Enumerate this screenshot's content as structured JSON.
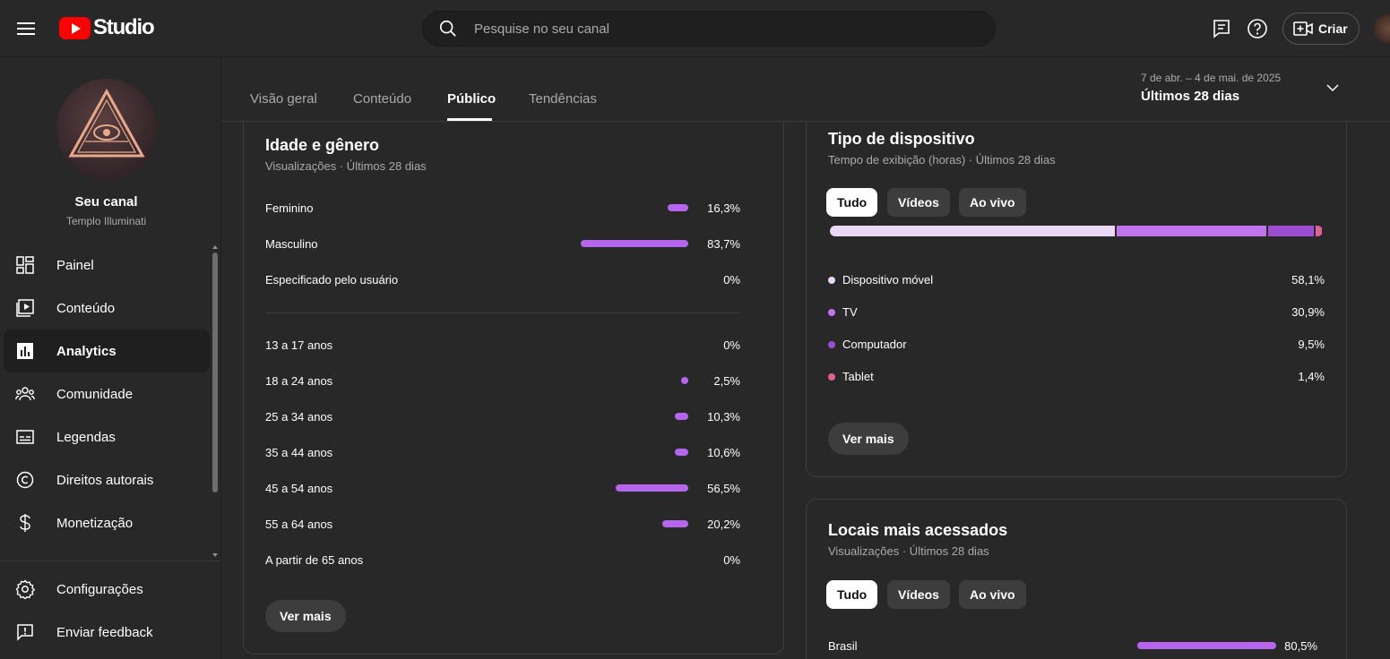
{
  "header": {
    "logo_text": "Studio",
    "search_placeholder": "Pesquise no seu canal",
    "create_label": "Criar"
  },
  "sidebar": {
    "channel_name": "Seu canal",
    "channel_handle": "Templo Illuminati",
    "items": [
      {
        "label": "Painel",
        "icon": "dashboard-icon"
      },
      {
        "label": "Conteúdo",
        "icon": "content-icon"
      },
      {
        "label": "Analytics",
        "icon": "analytics-icon",
        "active": true
      },
      {
        "label": "Comunidade",
        "icon": "community-icon"
      },
      {
        "label": "Legendas",
        "icon": "subtitles-icon"
      },
      {
        "label": "Direitos autorais",
        "icon": "copyright-icon"
      },
      {
        "label": "Monetização",
        "icon": "dollar-icon"
      }
    ],
    "bottom_items": [
      {
        "label": "Configurações",
        "icon": "gear-icon"
      },
      {
        "label": "Enviar feedback",
        "icon": "feedback-icon"
      }
    ]
  },
  "tabs": [
    {
      "label": "Visão geral"
    },
    {
      "label": "Conteúdo"
    },
    {
      "label": "Público",
      "active": true
    },
    {
      "label": "Tendências"
    }
  ],
  "date_range": {
    "range": "7 de abr. – 4 de mai. de 2025",
    "label": "Últimos 28 dias"
  },
  "age_gender": {
    "title": "Idade e gênero",
    "subtitle": "Visualizações · Últimos 28 dias",
    "gender": [
      {
        "label": "Feminino",
        "value": "16,3%",
        "pct": 16.3
      },
      {
        "label": "Masculino",
        "value": "83,7%",
        "pct": 83.7
      },
      {
        "label": "Especificado pelo usuário",
        "value": "0%",
        "pct": 0
      }
    ],
    "age": [
      {
        "label": "13 a 17 anos",
        "value": "0%",
        "pct": 0
      },
      {
        "label": "18 a 24 anos",
        "value": "2,5%",
        "pct": 2.5
      },
      {
        "label": "25 a 34 anos",
        "value": "10,3%",
        "pct": 10.3
      },
      {
        "label": "35 a 44 anos",
        "value": "10,6%",
        "pct": 10.6
      },
      {
        "label": "45 a 54 anos",
        "value": "56,5%",
        "pct": 56.5
      },
      {
        "label": "55 a 64 anos",
        "value": "20,2%",
        "pct": 20.2
      },
      {
        "label": "A partir de 65 anos",
        "value": "0%",
        "pct": 0
      }
    ],
    "more_label": "Ver mais"
  },
  "device_type": {
    "title": "Tipo de dispositivo",
    "subtitle": "Tempo de exibição (horas) · Últimos 28 dias",
    "chips": [
      {
        "label": "Tudo",
        "active": true
      },
      {
        "label": "Vídeos"
      },
      {
        "label": "Ao vivo"
      }
    ],
    "items": [
      {
        "label": "Dispositivo móvel",
        "value": "58,1%",
        "pct": 58.1,
        "color": "#e8d7f5"
      },
      {
        "label": "TV",
        "value": "30,9%",
        "pct": 30.9,
        "color": "#c074ec"
      },
      {
        "label": "Computador",
        "value": "9,5%",
        "pct": 9.5,
        "color": "#9b4fd0"
      },
      {
        "label": "Tablet",
        "value": "1,4%",
        "pct": 1.4,
        "color": "#e0609a"
      }
    ],
    "more_label": "Ver mais"
  },
  "top_locations": {
    "title": "Locais mais acessados",
    "subtitle": "Visualizações · Últimos 28 dias",
    "chips": [
      {
        "label": "Tudo",
        "active": true
      },
      {
        "label": "Vídeos"
      },
      {
        "label": "Ao vivo"
      }
    ],
    "items": [
      {
        "label": "Brasil",
        "value": "80,5%",
        "pct": 80.5
      }
    ]
  },
  "colors": {
    "bar": "#b566ec"
  }
}
